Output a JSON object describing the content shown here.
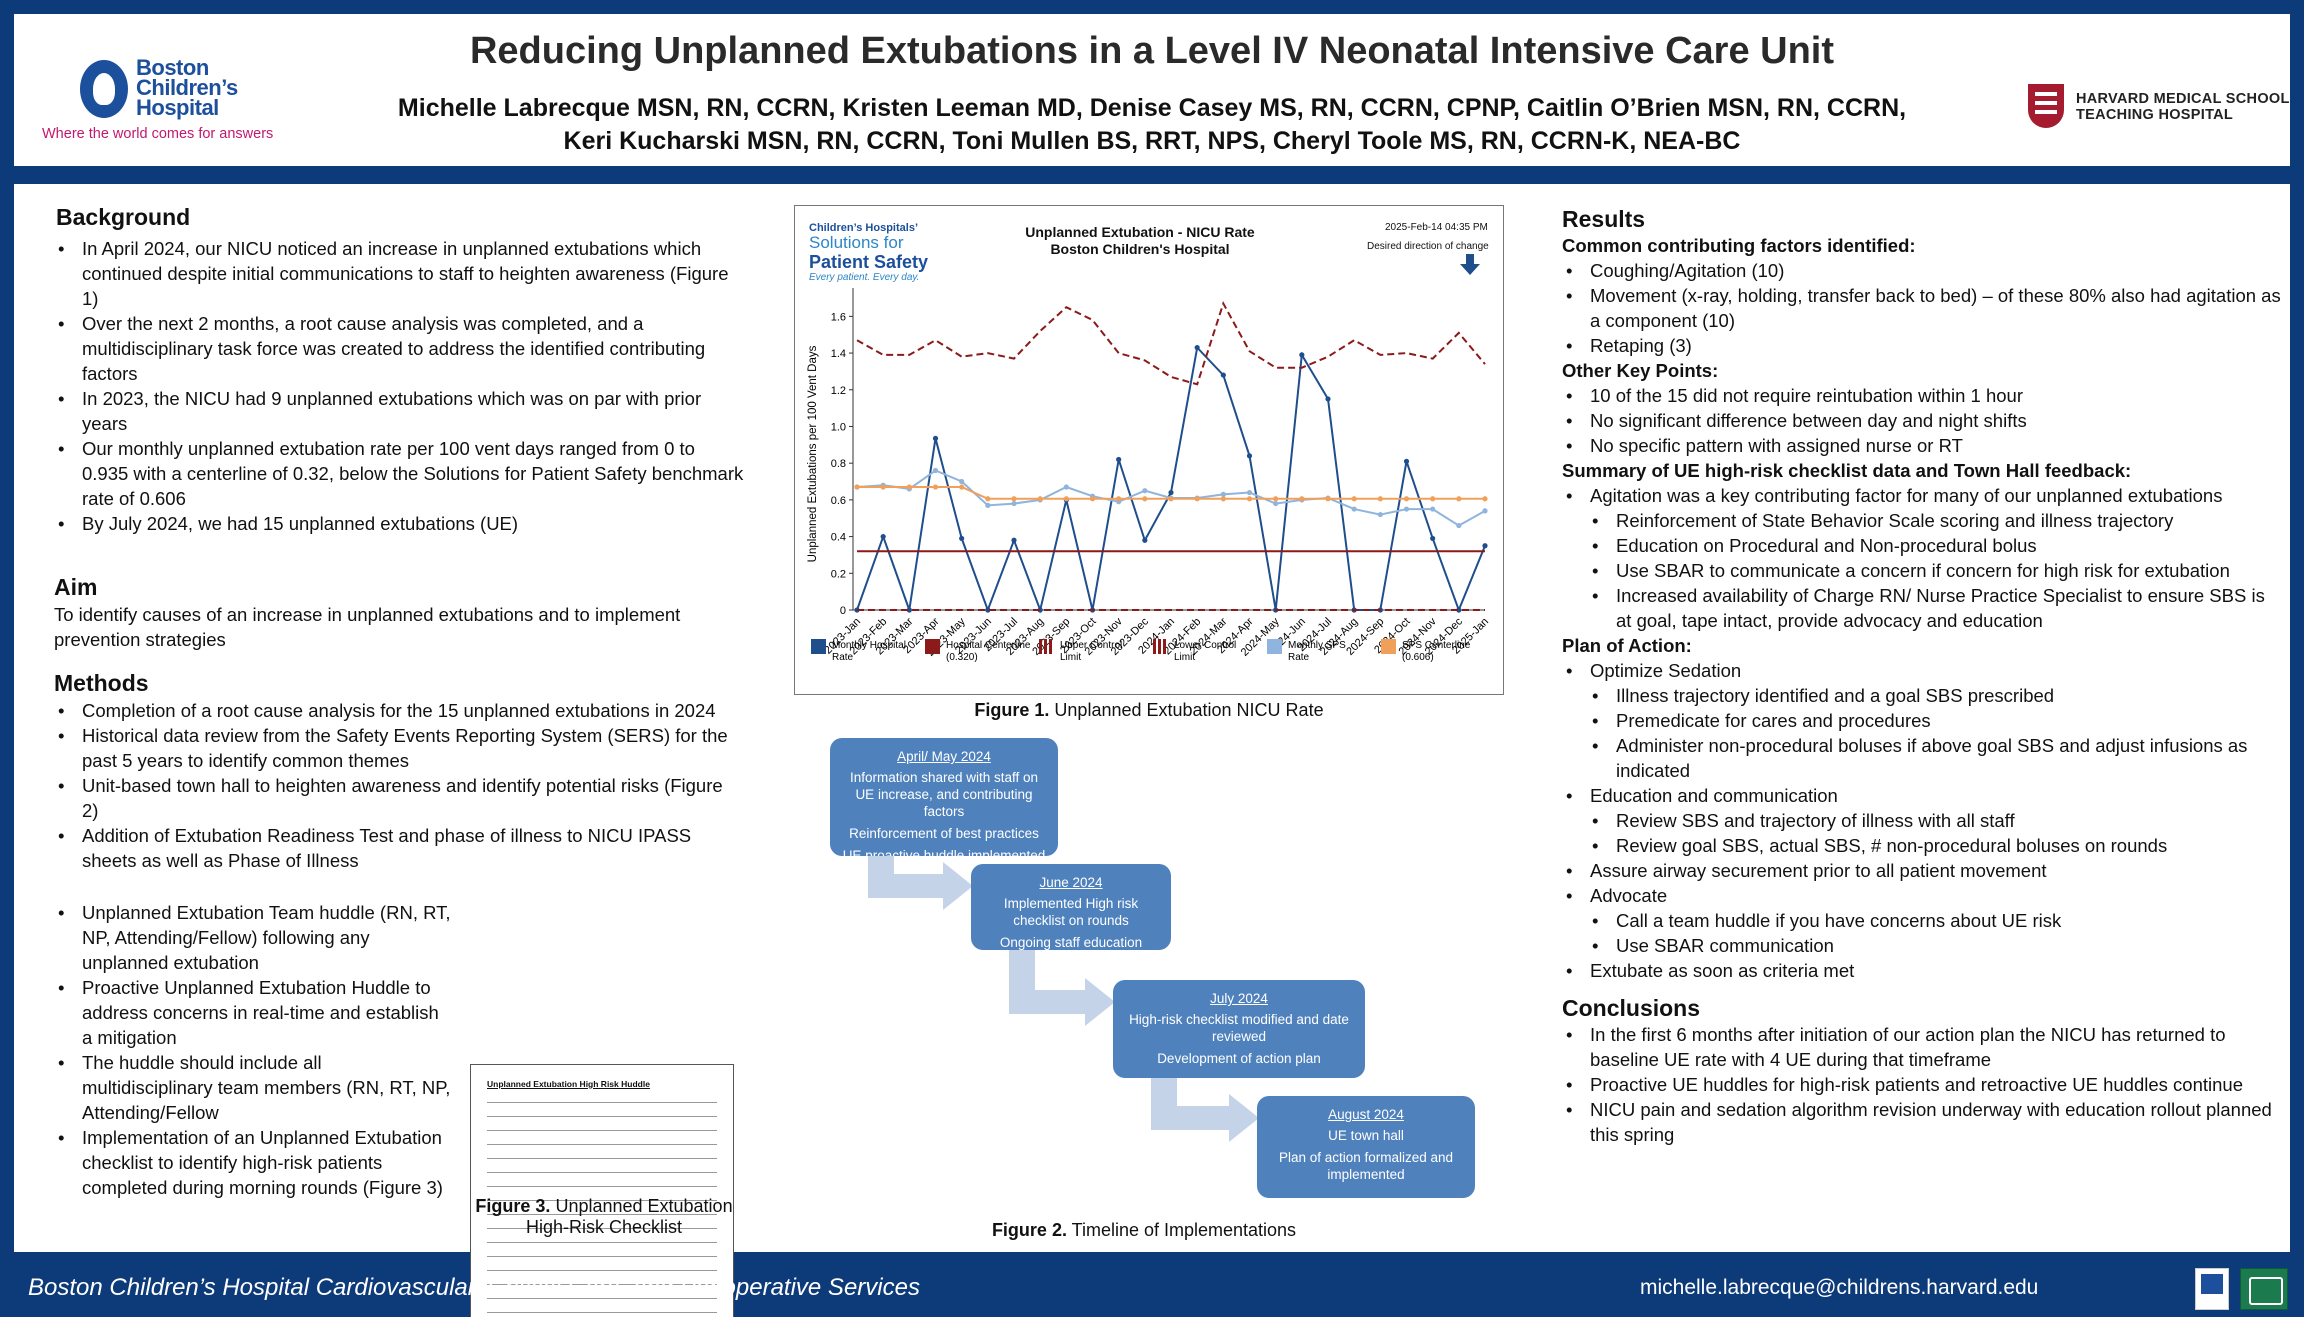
{
  "header": {
    "title": "Reducing Unplanned Extubations in a Level IV Neonatal Intensive Care Unit",
    "authors_line1": "Michelle Labrecque MSN, RN, CCRN, Kristen Leeman MD, Denise Casey MS, RN, CCRN, CPNP, Caitlin O’Brien MSN, RN, CCRN,",
    "authors_line2": "Keri Kucharski MSN, RN, CCRN, Toni Mullen BS, RRT, NPS, Cheryl Toole MS, RN, CCRN-K, NEA-BC",
    "left_logo": {
      "line1": "Boston",
      "line2": "Children’s",
      "line3": "Hospital",
      "tagline": "Where the world comes for answers"
    },
    "right_logo": {
      "line1": "HARVARD MEDICAL SCHOOL",
      "line2": "TEACHING HOSPITAL"
    }
  },
  "background": {
    "heading": "Background",
    "bullets": [
      "In April 2024, our NICU noticed an increase in unplanned extubations which continued despite initial communications to staff to heighten awareness (Figure 1)",
      "Over the next 2 months, a root cause analysis was completed, and a multidisciplinary task force was created to address the identified contributing factors",
      "In 2023, the NICU had 9 unplanned extubations which was on par with prior years",
      "Our monthly unplanned extubation rate per 100 vent days ranged from 0 to 0.935 with a centerline of 0.32, below the Solutions for Patient Safety benchmark rate of 0.606",
      "By July 2024, we had 15 unplanned extubations (UE)"
    ]
  },
  "aim": {
    "heading": "Aim",
    "text": "To identify causes of an increase in unplanned extubations and to implement prevention strategies"
  },
  "methods": {
    "heading": "Methods",
    "bullets_full": [
      "Completion of a root cause analysis for the 15 unplanned extubations in 2024",
      "Historical data review from the Safety Events Reporting System (SERS) for the past 5 years to identify common themes",
      "Unit-based town hall to heighten awareness and identify potential risks (Figure 2)",
      "Addition of Extubation Readiness Test and phase of illness to NICU IPASS sheets as well as Phase of Illness"
    ],
    "bullets_narrow": [
      "Unplanned Extubation Team huddle (RN, RT, NP, Attending/Fellow) following any unplanned extubation",
      "Proactive Unplanned Extubation Huddle to address concerns in real-time and establish a mitigation",
      "The huddle should include all multidisciplinary team members (RN, RT, NP, Attending/Fellow",
      "Implementation of an Unplanned Extubation checklist to identify high-risk patients completed during morning rounds (Figure 3)"
    ]
  },
  "figure1": {
    "caption_bold": "Figure 1.",
    "caption_text": " Unplanned Extubation NICU Rate",
    "sps_logo": {
      "line1": "Children’s Hospitals’",
      "line2": "Solutions for",
      "line3": "Patient Safety",
      "line4": "Every patient. Every day."
    },
    "chart_title_1": "Unplanned Extubation - NICU Rate",
    "chart_title_2": "Boston Children's Hospital",
    "timestamp": "2025-Feb-14 04:35 PM",
    "direction_label": "Desired direction of change"
  },
  "chart_data": {
    "type": "line",
    "title": "Unplanned Extubation - NICU Rate",
    "subtitle": "Boston Children's Hospital",
    "ylabel": "Unplanned Extubations per 100 Vent Days",
    "ylim": [
      0,
      1.7
    ],
    "yticks": [
      "0",
      "0.2",
      "0.4",
      "0.6",
      "0.8",
      "1.0",
      "1.2",
      "1.4",
      "1.6"
    ],
    "categories": [
      "2023-Jan",
      "2023-Feb",
      "2023-Mar",
      "2023-Apr",
      "2023-May",
      "2023-Jun",
      "2023-Jul",
      "2023-Aug",
      "2023-Sep",
      "2023-Oct",
      "2023-Nov",
      "2023-Dec",
      "2024-Jan",
      "2024-Feb",
      "2024-Mar",
      "2024-Apr",
      "2024-May",
      "2024-Jun",
      "2024-Jul",
      "2024-Aug",
      "2024-Sep",
      "2024-Oct",
      "2024-Nov",
      "2024-Dec",
      "2025-Jan"
    ],
    "series": [
      {
        "name": "Monthly Hospital Rate",
        "color": "#1f4e8c",
        "style": "solid-marker",
        "values": [
          0,
          0.4,
          0,
          0.935,
          0.39,
          0,
          0.38,
          0,
          0.6,
          0,
          0.82,
          0.38,
          0.64,
          1.43,
          1.28,
          0.84,
          0,
          1.39,
          1.15,
          0,
          0,
          0.81,
          0.39,
          0,
          0.35
        ]
      },
      {
        "name": "Hospital Centerline",
        "label_value": "(0.320)",
        "color": "#8b1a1a",
        "style": "solid",
        "values": [
          0.32,
          0.32,
          0.32,
          0.32,
          0.32,
          0.32,
          0.32,
          0.32,
          0.32,
          0.32,
          0.32,
          0.32,
          0.32,
          0.32,
          0.32,
          0.32,
          0.32,
          0.32,
          0.32,
          0.32,
          0.32,
          0.32,
          0.32,
          0.32,
          0.32
        ]
      },
      {
        "name": "Upper Control Limit",
        "color": "#8b1a1a",
        "style": "dashed",
        "values": [
          1.47,
          1.39,
          1.39,
          1.47,
          1.38,
          1.4,
          1.37,
          1.52,
          1.65,
          1.58,
          1.4,
          1.36,
          1.27,
          1.23,
          1.67,
          1.41,
          1.32,
          1.32,
          1.38,
          1.47,
          1.39,
          1.4,
          1.37,
          1.51,
          1.34
        ]
      },
      {
        "name": "Lower Control Limit",
        "color": "#8b1a1a",
        "style": "dashed",
        "values": [
          0,
          0,
          0,
          0,
          0,
          0,
          0,
          0,
          0,
          0,
          0,
          0,
          0,
          0,
          0,
          0,
          0,
          0,
          0,
          0,
          0,
          0,
          0,
          0,
          0
        ]
      },
      {
        "name": "Monthly SPS Rate",
        "color": "#8fb4dd",
        "style": "solid-marker",
        "values": [
          0.67,
          0.68,
          0.66,
          0.76,
          0.7,
          0.57,
          0.58,
          0.6,
          0.67,
          0.62,
          0.59,
          0.65,
          0.61,
          0.61,
          0.63,
          0.64,
          0.58,
          0.6,
          0.61,
          0.55,
          0.52,
          0.55,
          0.55,
          0.46,
          0.54
        ]
      },
      {
        "name": "SPS Centerline",
        "label_value": "(0.606)",
        "color": "#f0a05a",
        "style": "solid-marker",
        "values": [
          0.67,
          0.67,
          0.67,
          0.67,
          0.67,
          0.606,
          0.606,
          0.606,
          0.606,
          0.606,
          0.606,
          0.606,
          0.606,
          0.606,
          0.606,
          0.606,
          0.606,
          0.606,
          0.606,
          0.606,
          0.606,
          0.606,
          0.606,
          0.606,
          0.606
        ]
      }
    ],
    "legend": [
      {
        "l1": "Monthly Hospital",
        "l2": "Rate",
        "color": "#1f4e8c",
        "kind": "box"
      },
      {
        "l1": "Hospital Centerline",
        "l2": "(0.320)",
        "color": "#8b1a1a",
        "kind": "box"
      },
      {
        "l1": "Upper Control",
        "l2": "Limit",
        "color": "#8b1a1a",
        "kind": "dash"
      },
      {
        "l1": "Lower Control",
        "l2": "Limit",
        "color": "#8b1a1a",
        "kind": "dash"
      },
      {
        "l1": "Monthly SPS",
        "l2": "Rate",
        "color": "#8fb4dd",
        "kind": "box"
      },
      {
        "l1": "SPS Centerline",
        "l2": "(0.606)",
        "color": "#f0a05a",
        "kind": "box"
      }
    ]
  },
  "figure2": {
    "caption_bold": "Figure 2.",
    "caption_text": " Timeline of Implementations",
    "steps": [
      {
        "date": "April/ May 2024",
        "items": [
          "Information shared with staff on UE increase, and contributing factors",
          "Reinforcement of best practices",
          "UE proactive huddle implemented"
        ]
      },
      {
        "date": "June 2024",
        "items": [
          "Implemented High risk checklist on rounds",
          "Ongoing staff education"
        ]
      },
      {
        "date": "July 2024",
        "items": [
          "High-risk checklist modified and date reviewed",
          "Development of action plan"
        ]
      },
      {
        "date": "August 2024",
        "items": [
          "UE town hall",
          "Plan of action formalized and implemented"
        ]
      }
    ],
    "colors": {
      "box": "#4f81bd",
      "arrow": "#c5d3e8"
    }
  },
  "figure3": {
    "caption_bold": "Figure 3.",
    "caption_text": " Unplanned Extubation",
    "caption_line2": "High-Risk Checklist",
    "doc_title": "Unplanned Extubation High Risk Huddle"
  },
  "results": {
    "heading": "Results",
    "s1_head": "Common contributing factors identified:",
    "s1": [
      "Coughing/Agitation (10)",
      "Movement (x-ray, holding, transfer back to bed) – of these 80% also had agitation as a component (10)",
      "Retaping (3)"
    ],
    "s2_head": "Other Key Points:",
    "s2": [
      "10 of the 15 did not require reintubation within 1 hour",
      "No significant difference between day and night shifts",
      "No specific pattern with assigned nurse or RT"
    ],
    "s3_head": "Summary of UE high-risk checklist data and Town Hall feedback:",
    "s3": [
      "Agitation was a key contributing factor for many of our unplanned extubations"
    ],
    "s3_sub": [
      "Reinforcement of State Behavior Scale scoring and illness trajectory",
      "Education on Procedural and Non-procedural bolus",
      "Use SBAR to communicate a concern if concern for high risk for extubation",
      "Increased availability of Charge RN/ Nurse Practice Specialist to ensure SBS is at goal, tape intact, provide advocacy and education"
    ],
    "s4_head": "Plan of Action:",
    "p1": "Optimize Sedation",
    "p1_sub": [
      "Illness trajectory identified and a goal SBS prescribed",
      "Premedicate for cares and procedures",
      "Administer non-procedural boluses if above goal SBS and adjust infusions as indicated"
    ],
    "p2": "Education and communication",
    "p2_sub": [
      "Review SBS and trajectory of illness with all staff",
      "Review goal SBS, actual SBS, # non-procedural boluses on rounds"
    ],
    "p3": "Assure airway securement prior to all patient movement",
    "p4": "Advocate",
    "p4_sub": [
      "Call a team huddle if you have concerns about UE risk",
      "Use SBAR communication"
    ],
    "p5": "Extubate as soon as criteria met"
  },
  "conclusions": {
    "heading": "Conclusions",
    "bullets": [
      "In the first 6 months after initiation of our action plan the NICU has returned to baseline UE rate with 4 UE during that timeframe",
      "Proactive UE huddles for high-risk patients and retroactive UE huddles continue",
      "NICU pain and sedation algorithm revision underway with education rollout planned this spring"
    ]
  },
  "footer": {
    "left": "Boston Children’s Hospital Cardiovascular, Critical Care, and Perioperative Services",
    "right": "michelle.labrecque@childrens.harvard.edu"
  },
  "colors": {
    "frame": "#0d3b7a",
    "header_text": "#2a2a2a",
    "brand_blue": "#1c4f9c",
    "tagline_pink": "#c2186e",
    "harvard_red": "#a51c30"
  }
}
